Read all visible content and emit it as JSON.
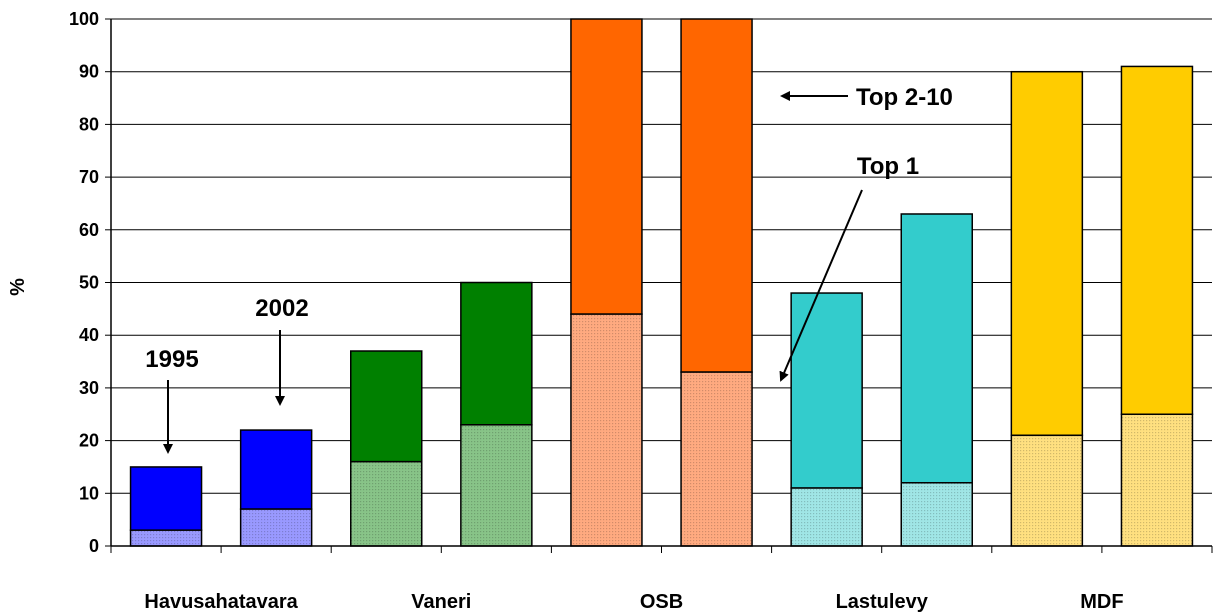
{
  "chart_data": {
    "type": "bar",
    "stacked": true,
    "ylabel": "%",
    "ylim": [
      0,
      100
    ],
    "yticks": [
      0,
      10,
      20,
      30,
      40,
      50,
      60,
      70,
      80,
      90,
      100
    ],
    "grid": true,
    "categories": [
      "Havusahatavara",
      "Vaneri",
      "OSB",
      "Lastulevy",
      "MDF"
    ],
    "bars": [
      {
        "category": "Havusahatavara",
        "year": "1995",
        "top1": 3,
        "total": 15,
        "color": "#0000ff",
        "light_color": "#9999ff"
      },
      {
        "category": "Havusahatavara",
        "year": "2002",
        "top1": 7,
        "total": 22,
        "color": "#0000ff",
        "light_color": "#9999ff"
      },
      {
        "category": "Vaneri",
        "year": "1995",
        "top1": 16,
        "total": 37,
        "color": "#008000",
        "light_color": "#88c488"
      },
      {
        "category": "Vaneri",
        "year": "2002",
        "top1": 23,
        "total": 50,
        "color": "#008000",
        "light_color": "#88c488"
      },
      {
        "category": "OSB",
        "year": "1995",
        "top1": 44,
        "total": 100,
        "color": "#ff6600",
        "light_color": "#ffaa80"
      },
      {
        "category": "OSB",
        "year": "2002",
        "top1": 33,
        "total": 100,
        "color": "#ff6600",
        "light_color": "#ffaa80"
      },
      {
        "category": "Lastulevy",
        "year": "1995",
        "top1": 11,
        "total": 48,
        "color": "#33cccc",
        "light_color": "#a0e6e6"
      },
      {
        "category": "Lastulevy",
        "year": "2002",
        "top1": 12,
        "total": 63,
        "color": "#33cccc",
        "light_color": "#a0e6e6"
      },
      {
        "category": "MDF",
        "year": "1995",
        "top1": 21,
        "total": 90,
        "color": "#ffcc00",
        "light_color": "#ffe080"
      },
      {
        "category": "MDF",
        "year": "2002",
        "top1": 25,
        "total": 91,
        "color": "#ffcc00",
        "light_color": "#ffe080"
      }
    ],
    "annotations": {
      "year_1995": "1995",
      "year_2002": "2002",
      "top_2_10": "Top 2-10",
      "top_1": "Top 1"
    }
  }
}
